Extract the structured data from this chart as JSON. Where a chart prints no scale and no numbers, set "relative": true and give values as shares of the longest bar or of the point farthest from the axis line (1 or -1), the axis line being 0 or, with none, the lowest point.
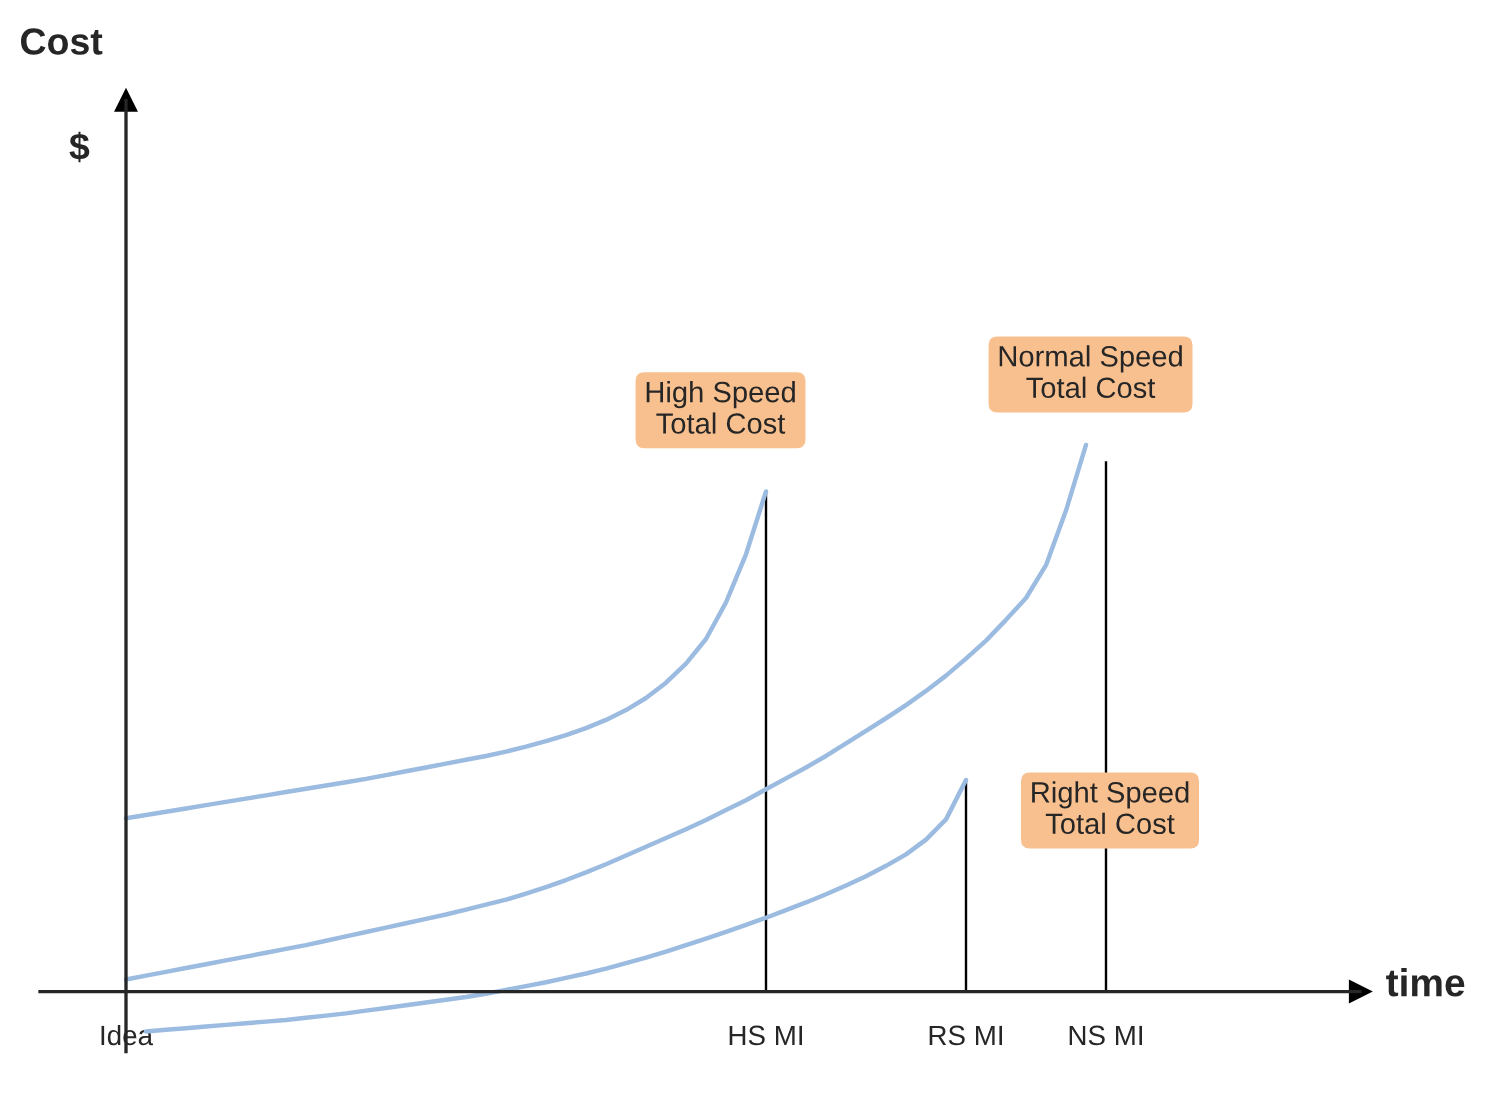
{
  "chart_data": {
    "type": "line",
    "relative": true,
    "categories": [
      "Idea",
      null,
      null,
      null,
      null,
      null,
      null,
      null,
      null,
      null,
      null,
      null,
      null,
      null,
      null,
      null,
      null,
      null,
      null,
      null,
      null,
      null,
      null,
      null,
      null,
      null,
      null,
      null,
      null,
      null,
      null,
      null,
      "HS MI",
      null,
      null,
      null,
      null,
      null,
      null,
      null,
      null,
      null,
      "RS MI",
      null,
      null,
      null,
      null,
      null,
      null,
      "NS MI"
    ],
    "series": [
      {
        "color": "#9bbbe0",
        "values": [
          0.317,
          0.323,
          0.329,
          0.335,
          0.341,
          0.347,
          0.353,
          0.359,
          0.365,
          0.371,
          0.377,
          0.383,
          0.389,
          0.396,
          0.403,
          0.41,
          0.417,
          0.424,
          0.431,
          0.439,
          0.448,
          0.458,
          0.469,
          0.482,
          0.497,
          0.515,
          0.537,
          0.565,
          0.6,
          0.645,
          0.712,
          0.8,
          0.915,
          null,
          null,
          null,
          null,
          null,
          null,
          null,
          null,
          null,
          null,
          null,
          null,
          null,
          null,
          null,
          null,
          null
        ]
      },
      {
        "color": "#9bbbe0",
        "values": [
          0.022,
          0.029,
          0.036,
          0.043,
          0.05,
          0.057,
          0.064,
          0.071,
          0.078,
          0.085,
          0.093,
          0.101,
          0.109,
          0.117,
          0.125,
          0.133,
          0.141,
          0.15,
          0.159,
          0.168,
          0.179,
          0.191,
          0.204,
          0.218,
          0.233,
          0.249,
          0.265,
          0.281,
          0.297,
          0.314,
          0.332,
          0.35,
          0.37,
          0.39,
          0.41,
          0.431,
          0.454,
          0.477,
          0.5,
          0.524,
          0.55,
          0.578,
          0.609,
          0.642,
          0.68,
          0.72,
          0.78,
          0.88,
          1.0,
          null
        ]
      },
      {
        "color": "#9bbbe0",
        "values": [
          null,
          -0.073,
          -0.07,
          -0.067,
          -0.064,
          -0.061,
          -0.058,
          -0.055,
          -0.052,
          -0.048,
          -0.044,
          -0.04,
          -0.035,
          -0.03,
          -0.025,
          -0.02,
          -0.015,
          -0.01,
          -0.004,
          0.003,
          0.01,
          0.017,
          0.025,
          0.033,
          0.042,
          0.052,
          0.062,
          0.073,
          0.085,
          0.097,
          0.109,
          0.122,
          0.135,
          0.149,
          0.163,
          0.178,
          0.194,
          0.211,
          0.23,
          0.251,
          0.278,
          0.315,
          0.387,
          null,
          null,
          null,
          null,
          null,
          null,
          null
        ]
      },
      {
        "type": "bar",
        "color": "#000000",
        "values": [
          null,
          null,
          null,
          null,
          null,
          null,
          null,
          null,
          null,
          null,
          null,
          null,
          null,
          null,
          null,
          null,
          null,
          null,
          null,
          null,
          null,
          null,
          null,
          null,
          null,
          null,
          null,
          null,
          null,
          null,
          null,
          null,
          0.915,
          null,
          null,
          null,
          null,
          null,
          null,
          null,
          null,
          null,
          0.387,
          null,
          null,
          null,
          null,
          null,
          null,
          0.97
        ]
      }
    ],
    "annotations": [
      "Cost",
      "$",
      "High Speed\nTotal Cost",
      "Normal Speed\nTotal Cost",
      "Right Speed\nTotal Cost",
      "time"
    ],
    "legend": false,
    "grid": false
  }
}
